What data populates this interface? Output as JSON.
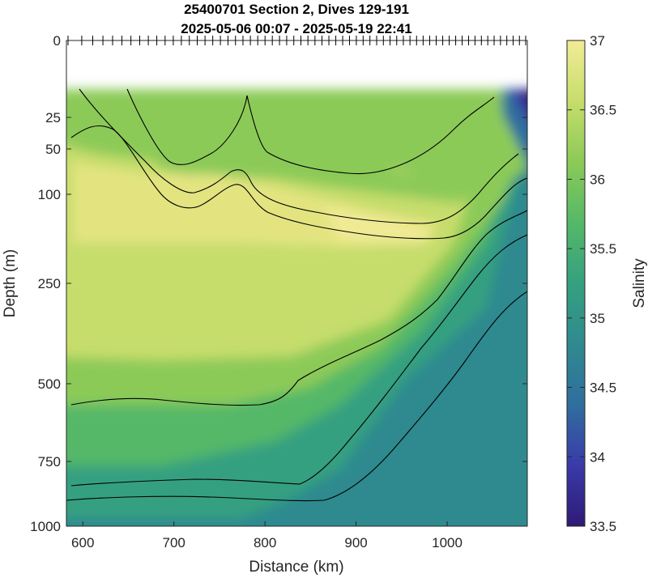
{
  "chart_data": {
    "type": "heatmap",
    "title": "25400701 Section 2, Dives 129-191",
    "subtitle": "2025-05-06 00:07 - 2025-05-19 22:41",
    "xlabel": "Distance (km)",
    "ylabel": "Depth (m)",
    "colorbar_label": "Salinity",
    "xlim": [
      582,
      1088
    ],
    "depth_ticks": [
      "0",
      "25",
      "50",
      "100",
      "250",
      "500",
      "750",
      "1000"
    ],
    "depth_tick_values": [
      0,
      25,
      50,
      100,
      250,
      500,
      750,
      1000
    ],
    "x_ticks": [
      "600",
      "700",
      "800",
      "900",
      "1000"
    ],
    "x_tick_values": [
      600,
      700,
      800,
      900,
      1000
    ],
    "clim": [
      33.5,
      37
    ],
    "colorbar_ticks": [
      "33.5",
      "34",
      "34.5",
      "35",
      "35.5",
      "36",
      "36.5",
      "37"
    ],
    "colorbar_tick_values": [
      33.5,
      34,
      34.5,
      35,
      35.5,
      36,
      36.5,
      37
    ],
    "colormap": [
      "#2f1a75",
      "#3a3aa8",
      "#2f6e9e",
      "#2f8a8f",
      "#35a080",
      "#55b868",
      "#8cca58",
      "#c6dd6c",
      "#f2ec96"
    ],
    "colormap_name": "haline",
    "no_data_depth_above": 15,
    "dive_marker_count": 63,
    "contour_levels": [
      "35",
      "35.5",
      "36",
      "36.5",
      "36.6",
      "36.7"
    ],
    "grid": false
  }
}
